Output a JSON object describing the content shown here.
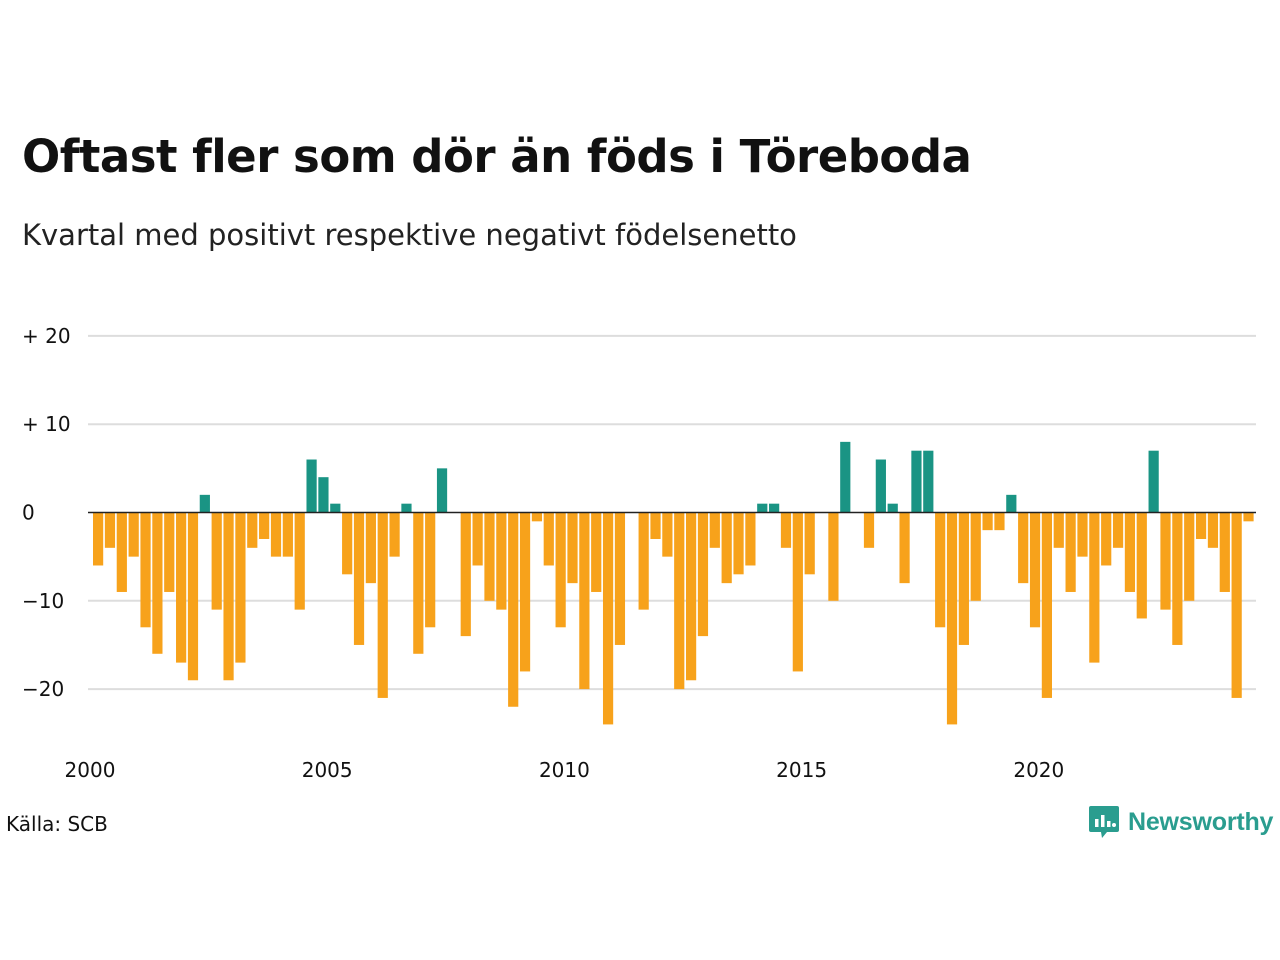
{
  "title": "Oftast fler som dör än föds i Töreboda",
  "subtitle": "Kvartal med positivt respektive negativt födelsenetto",
  "source": "Källa: SCB",
  "brand": "Newsworthy",
  "colors": {
    "positive": "#1a9484",
    "negative": "#f7a21b",
    "grid": "#dddddd",
    "zero": "#222222",
    "brand": "#2a9d8f"
  },
  "chart_data": {
    "type": "bar",
    "ylim": [
      -25,
      20
    ],
    "y_ticks": [
      {
        "value": 20,
        "label": "+ 20"
      },
      {
        "value": 10,
        "label": "+ 10"
      },
      {
        "value": 0,
        "label": "0"
      },
      {
        "value": -10,
        "label": "−10"
      },
      {
        "value": -20,
        "label": "−20"
      }
    ],
    "x_ticks": [
      "2000",
      "2005",
      "2010",
      "2015",
      "2020"
    ],
    "start_year": 2000,
    "series": [
      {
        "values": [
          -6,
          -4,
          -9,
          -5,
          -13,
          -16,
          -9,
          -17,
          -19,
          2,
          -11,
          -19,
          -17,
          -4,
          -3,
          -5,
          -5,
          -11,
          6,
          4,
          1,
          -7,
          -15,
          -8,
          -21,
          -5,
          1,
          -16,
          -13,
          5,
          0,
          -14,
          -6,
          -10,
          -11,
          -22,
          -18,
          -1,
          -6,
          -13,
          -8,
          -20,
          -9,
          -24,
          -15,
          0,
          -11,
          -3,
          -5,
          -20,
          -19,
          -14,
          -4,
          -8,
          -7,
          -6,
          1,
          1,
          -4,
          -18,
          -7,
          0,
          -10,
          8,
          0,
          -4,
          6,
          1,
          -8,
          7,
          7,
          -13,
          -24,
          -15,
          -10,
          -2,
          -2,
          2,
          -8,
          -13,
          -21,
          -4,
          -9,
          -5,
          -17,
          -6,
          -4,
          -9,
          -12,
          7,
          -11,
          -15,
          -10,
          -3,
          -4,
          -9,
          -21,
          -1
        ]
      }
    ]
  }
}
